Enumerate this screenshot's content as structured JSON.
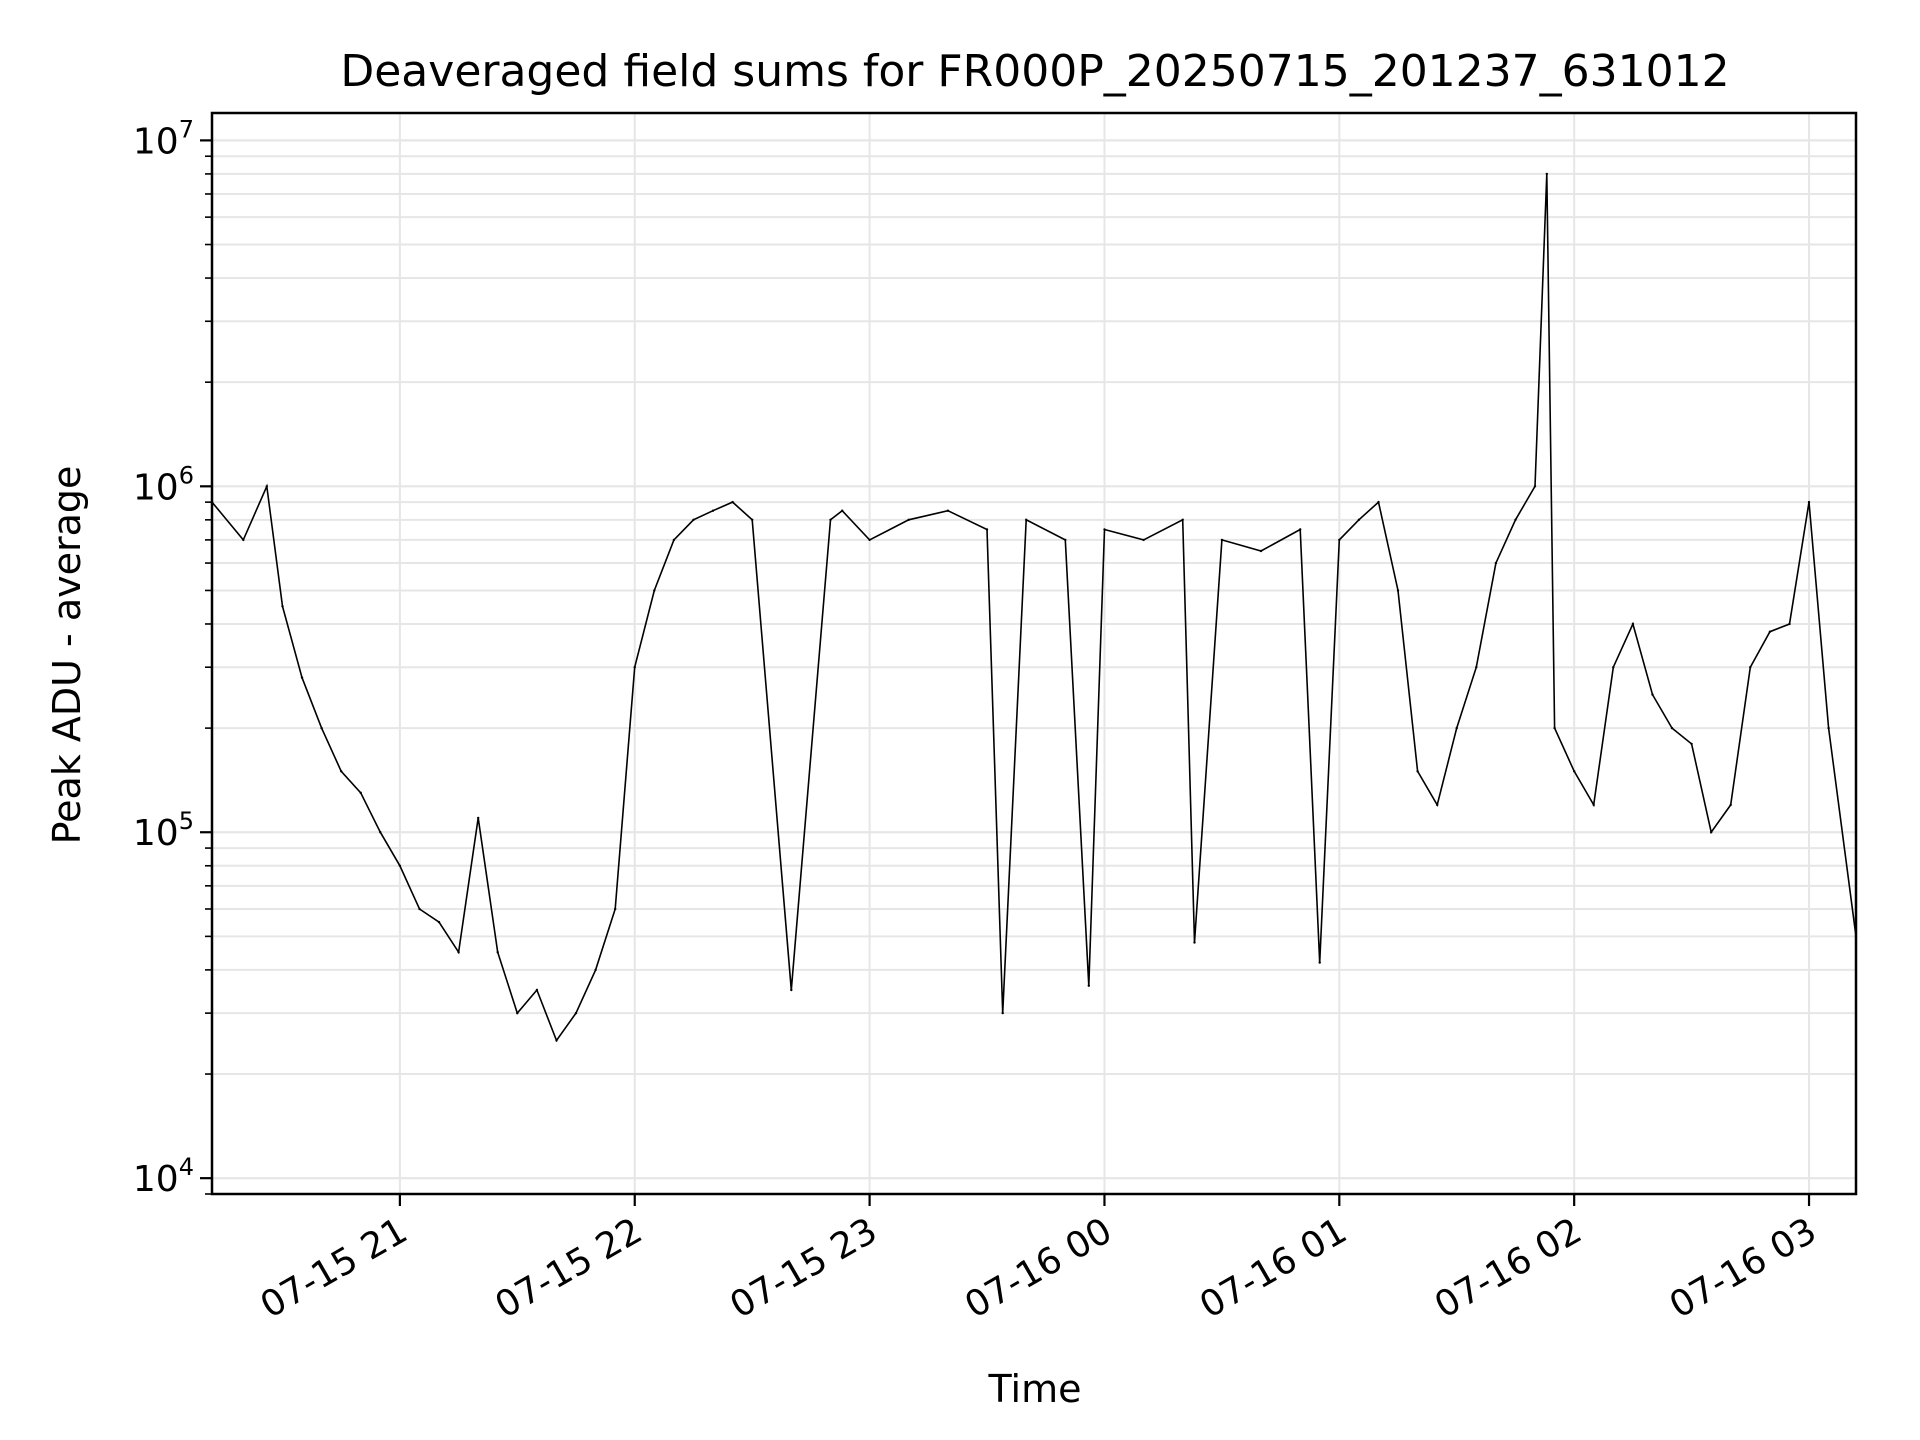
{
  "chart_data": {
    "type": "line",
    "title": "Deaveraged field sums for FR000P_20250715_201237_631012",
    "xlabel": "Time",
    "ylabel": "Peak ADU - average",
    "yscale": "log",
    "ylim": [
      9000,
      12000000
    ],
    "xlim": [
      "2025-07-15 20:12",
      "2025-07-16 03:12"
    ],
    "grid": true,
    "xticks": [
      "07-15 21",
      "07-15 22",
      "07-15 23",
      "07-16 00",
      "07-16 01",
      "07-16 02",
      "07-16 03"
    ],
    "yticks": [
      {
        "base": "10",
        "exp": "4",
        "value": 10000
      },
      {
        "base": "10",
        "exp": "5",
        "value": 100000
      },
      {
        "base": "10",
        "exp": "6",
        "value": 1000000
      },
      {
        "base": "10",
        "exp": "7",
        "value": 10000000
      }
    ],
    "line_color": "#000000",
    "x": [
      "2025-07-15 20:12",
      "2025-07-15 20:20",
      "2025-07-15 20:26",
      "2025-07-15 20:30",
      "2025-07-15 20:35",
      "2025-07-15 20:40",
      "2025-07-15 20:45",
      "2025-07-15 20:50",
      "2025-07-15 20:55",
      "2025-07-15 21:00",
      "2025-07-15 21:05",
      "2025-07-15 21:10",
      "2025-07-15 21:15",
      "2025-07-15 21:20",
      "2025-07-15 21:25",
      "2025-07-15 21:30",
      "2025-07-15 21:35",
      "2025-07-15 21:40",
      "2025-07-15 21:45",
      "2025-07-15 21:50",
      "2025-07-15 21:55",
      "2025-07-15 22:00",
      "2025-07-15 22:05",
      "2025-07-15 22:10",
      "2025-07-15 22:15",
      "2025-07-15 22:20",
      "2025-07-15 22:25",
      "2025-07-15 22:30",
      "2025-07-15 22:40",
      "2025-07-15 22:50",
      "2025-07-15 22:53",
      "2025-07-15 23:00",
      "2025-07-15 23:10",
      "2025-07-15 23:20",
      "2025-07-15 23:30",
      "2025-07-15 23:34",
      "2025-07-15 23:40",
      "2025-07-15 23:50",
      "2025-07-15 23:56",
      "2025-07-16 00:00",
      "2025-07-16 00:10",
      "2025-07-16 00:20",
      "2025-07-16 00:23",
      "2025-07-16 00:30",
      "2025-07-16 00:40",
      "2025-07-16 00:50",
      "2025-07-16 00:55",
      "2025-07-16 01:00",
      "2025-07-16 01:05",
      "2025-07-16 01:10",
      "2025-07-16 01:15",
      "2025-07-16 01:20",
      "2025-07-16 01:25",
      "2025-07-16 01:30",
      "2025-07-16 01:35",
      "2025-07-16 01:40",
      "2025-07-16 01:45",
      "2025-07-16 01:50",
      "2025-07-16 01:53",
      "2025-07-16 01:55",
      "2025-07-16 02:00",
      "2025-07-16 02:05",
      "2025-07-16 02:10",
      "2025-07-16 02:15",
      "2025-07-16 02:20",
      "2025-07-16 02:25",
      "2025-07-16 02:30",
      "2025-07-16 02:35",
      "2025-07-16 02:40",
      "2025-07-16 02:45",
      "2025-07-16 02:50",
      "2025-07-16 02:55",
      "2025-07-16 03:00",
      "2025-07-16 03:05",
      "2025-07-16 03:12"
    ],
    "values": [
      900000,
      700000,
      1000000,
      450000,
      280000,
      200000,
      150000,
      130000,
      100000,
      80000,
      60000,
      55000,
      45000,
      110000,
      45000,
      30000,
      35000,
      25000,
      30000,
      40000,
      60000,
      300000,
      500000,
      700000,
      800000,
      850000,
      900000,
      800000,
      35000,
      800000,
      850000,
      700000,
      800000,
      850000,
      750000,
      30000,
      800000,
      700000,
      36000,
      750000,
      700000,
      800000,
      48000,
      700000,
      650000,
      750000,
      42000,
      700000,
      800000,
      900000,
      500000,
      150000,
      120000,
      200000,
      300000,
      600000,
      800000,
      1000000,
      8000000,
      200000,
      150000,
      120000,
      300000,
      400000,
      250000,
      200000,
      180000,
      100000,
      120000,
      300000,
      380000,
      400000,
      900000,
      200000,
      50000
    ]
  }
}
